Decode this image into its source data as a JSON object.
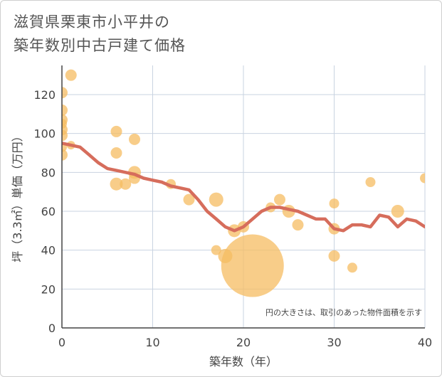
{
  "title_lines": [
    "滋賀県栗東市小平井の",
    "築年数別中古戸建て価格"
  ],
  "chart_data": {
    "type": "scatter",
    "title": "滋賀県栗東市小平井の築年数別中古戸建て価格",
    "xlabel": "築年数（年）",
    "ylabel": "坪（3.3㎡）単価（万円）",
    "xlim": [
      0,
      40
    ],
    "ylim": [
      0,
      135
    ],
    "xticks": [
      0,
      10,
      20,
      30,
      40
    ],
    "yticks": [
      0,
      20,
      40,
      60,
      80,
      100,
      120
    ],
    "grid": true,
    "note": "円の大きさは、取引のあった物件面積を示す",
    "scatter_points": [
      {
        "x": 0,
        "y": 121,
        "s": 8
      },
      {
        "x": 0,
        "y": 112,
        "s": 8
      },
      {
        "x": 0,
        "y": 107,
        "s": 8
      },
      {
        "x": 0,
        "y": 105,
        "s": 7
      },
      {
        "x": 0,
        "y": 102,
        "s": 8
      },
      {
        "x": 0,
        "y": 99,
        "s": 8
      },
      {
        "x": 0,
        "y": 93,
        "s": 7
      },
      {
        "x": 0,
        "y": 89,
        "s": 8
      },
      {
        "x": 1,
        "y": 130,
        "s": 8
      },
      {
        "x": 1,
        "y": 94,
        "s": 6
      },
      {
        "x": 6,
        "y": 101,
        "s": 8
      },
      {
        "x": 6,
        "y": 90,
        "s": 8
      },
      {
        "x": 6,
        "y": 74,
        "s": 9
      },
      {
        "x": 7,
        "y": 74,
        "s": 8
      },
      {
        "x": 8,
        "y": 97,
        "s": 8
      },
      {
        "x": 8,
        "y": 80,
        "s": 9
      },
      {
        "x": 8,
        "y": 77,
        "s": 8
      },
      {
        "x": 12,
        "y": 74,
        "s": 7
      },
      {
        "x": 14,
        "y": 66,
        "s": 8
      },
      {
        "x": 17,
        "y": 66,
        "s": 10
      },
      {
        "x": 17,
        "y": 40,
        "s": 7
      },
      {
        "x": 18,
        "y": 37,
        "s": 10
      },
      {
        "x": 19,
        "y": 50,
        "s": 9
      },
      {
        "x": 20,
        "y": 52,
        "s": 8
      },
      {
        "x": 21,
        "y": 32,
        "s": 44
      },
      {
        "x": 23,
        "y": 62,
        "s": 7
      },
      {
        "x": 24,
        "y": 66,
        "s": 8
      },
      {
        "x": 25,
        "y": 60,
        "s": 9
      },
      {
        "x": 26,
        "y": 53,
        "s": 8
      },
      {
        "x": 30,
        "y": 64,
        "s": 7
      },
      {
        "x": 30,
        "y": 51,
        "s": 8
      },
      {
        "x": 30,
        "y": 37,
        "s": 8
      },
      {
        "x": 32,
        "y": 31,
        "s": 7
      },
      {
        "x": 34,
        "y": 75,
        "s": 7
      },
      {
        "x": 37,
        "y": 60,
        "s": 9
      },
      {
        "x": 40,
        "y": 77,
        "s": 7
      }
    ],
    "trend_line": {
      "x": [
        0,
        1,
        2,
        3,
        4,
        5,
        6,
        7,
        8,
        9,
        10,
        11,
        12,
        13,
        14,
        15,
        16,
        17,
        18,
        19,
        20,
        21,
        22,
        23,
        24,
        25,
        26,
        27,
        28,
        29,
        30,
        31,
        32,
        33,
        34,
        35,
        36,
        37,
        38,
        39,
        40
      ],
      "y": [
        95,
        94,
        93,
        89,
        85,
        82,
        81,
        80,
        79,
        77,
        76,
        75,
        73,
        72,
        71,
        66,
        60,
        56,
        52,
        50,
        52,
        56,
        60,
        62,
        62,
        61,
        60,
        58,
        56,
        56,
        51,
        50,
        53,
        53,
        52,
        58,
        57,
        52,
        56,
        55,
        52
      ]
    },
    "colors": {
      "scatter": "#f5bc61",
      "trend": "#d66d5c",
      "grid": "#c9d3e1",
      "axis": "#444444"
    }
  }
}
